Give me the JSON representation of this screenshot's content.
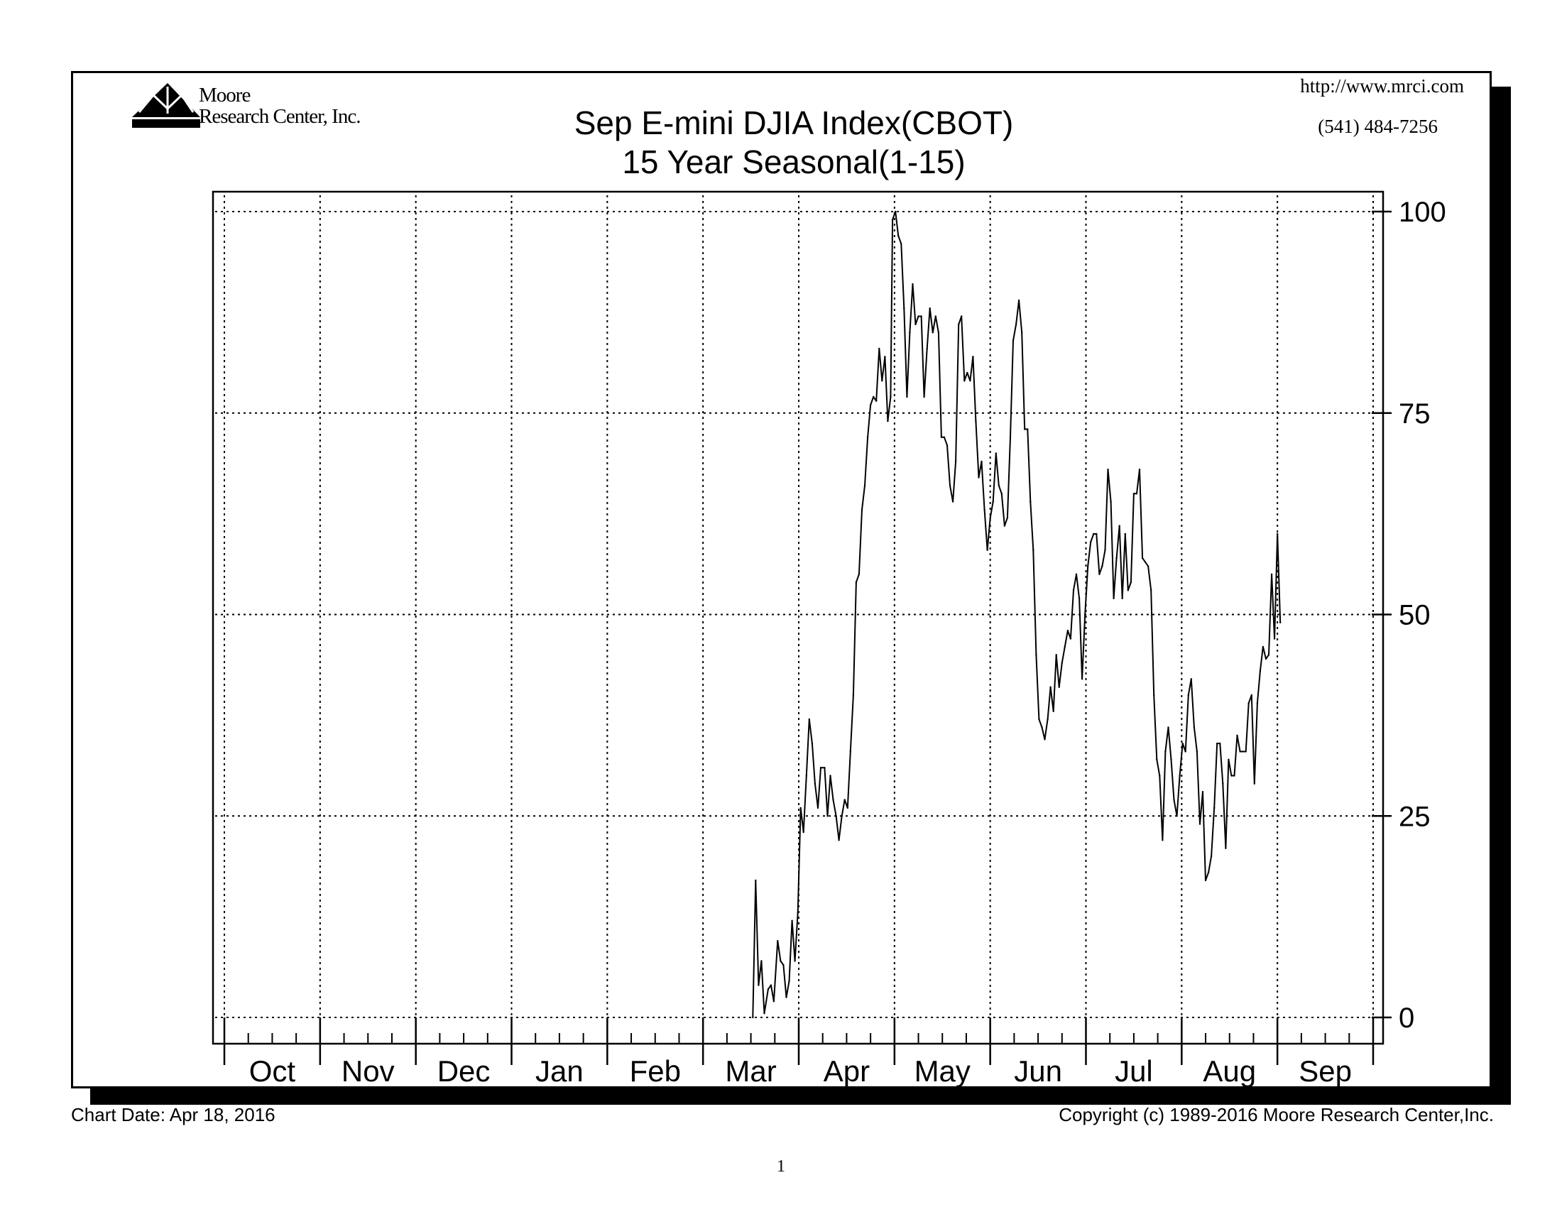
{
  "header": {
    "logo_name": "Moore",
    "logo_company": "Research Center, Inc.",
    "website": "http://www.mrci.com",
    "phone": "(541) 484-7256"
  },
  "footer": {
    "chart_date": "Chart Date: Apr 18, 2016",
    "copyright": "Copyright (c) 1989-2016 Moore Research Center,Inc.",
    "page_number": "1"
  },
  "chart_data": {
    "type": "line",
    "title": "Sep E-mini DJIA Index(CBOT)",
    "subtitle": "15 Year Seasonal(1-15)",
    "xlabel": "",
    "ylabel": "",
    "categories": [
      "Oct",
      "Nov",
      "Dec",
      "Jan",
      "Feb",
      "Mar",
      "Apr",
      "May",
      "Jun",
      "Jul",
      "Aug",
      "Sep"
    ],
    "y_ticks": [
      "0",
      "25",
      "50",
      "75",
      "100"
    ],
    "ylim": [
      0,
      100
    ],
    "xlim": [
      0,
      12
    ],
    "grid": true,
    "line_color": "#000000",
    "series": [
      {
        "points": [
          [
            5.52,
            0
          ],
          [
            5.55,
            17
          ],
          [
            5.58,
            4
          ],
          [
            5.61,
            7
          ],
          [
            5.64,
            0.5
          ],
          [
            5.68,
            3.5
          ],
          [
            5.71,
            4
          ],
          [
            5.74,
            2
          ],
          [
            5.78,
            9.5
          ],
          [
            5.81,
            7
          ],
          [
            5.84,
            6.5
          ],
          [
            5.87,
            2.5
          ],
          [
            5.9,
            4.5
          ],
          [
            5.93,
            12
          ],
          [
            5.96,
            7
          ],
          [
            5.99,
            13
          ],
          [
            6.02,
            26
          ],
          [
            6.05,
            23
          ],
          [
            6.08,
            30
          ],
          [
            6.11,
            37
          ],
          [
            6.14,
            34
          ],
          [
            6.17,
            29
          ],
          [
            6.2,
            26
          ],
          [
            6.23,
            31
          ],
          [
            6.27,
            31
          ],
          [
            6.3,
            25
          ],
          [
            6.33,
            30
          ],
          [
            6.36,
            27
          ],
          [
            6.39,
            25
          ],
          [
            6.42,
            22
          ],
          [
            6.45,
            25
          ],
          [
            6.48,
            27
          ],
          [
            6.51,
            26
          ],
          [
            6.54,
            33
          ],
          [
            6.57,
            40
          ],
          [
            6.6,
            54
          ],
          [
            6.63,
            55
          ],
          [
            6.66,
            63
          ],
          [
            6.69,
            66
          ],
          [
            6.72,
            72
          ],
          [
            6.75,
            76
          ],
          [
            6.78,
            77
          ],
          [
            6.81,
            76.5
          ],
          [
            6.84,
            83
          ],
          [
            6.87,
            79
          ],
          [
            6.9,
            82
          ],
          [
            6.93,
            74
          ],
          [
            6.96,
            77
          ],
          [
            6.98,
            99
          ],
          [
            7.01,
            100
          ],
          [
            7.04,
            97
          ],
          [
            7.07,
            96
          ],
          [
            7.1,
            88
          ],
          [
            7.13,
            77
          ],
          [
            7.16,
            85
          ],
          [
            7.19,
            91
          ],
          [
            7.22,
            86
          ],
          [
            7.25,
            87
          ],
          [
            7.28,
            87
          ],
          [
            7.31,
            77
          ],
          [
            7.34,
            83
          ],
          [
            7.37,
            88
          ],
          [
            7.4,
            85
          ],
          [
            7.43,
            87
          ],
          [
            7.46,
            85
          ],
          [
            7.49,
            72
          ],
          [
            7.52,
            72
          ],
          [
            7.55,
            71
          ],
          [
            7.58,
            66
          ],
          [
            7.61,
            64
          ],
          [
            7.64,
            69
          ],
          [
            7.67,
            86
          ],
          [
            7.7,
            87
          ],
          [
            7.73,
            79
          ],
          [
            7.76,
            80
          ],
          [
            7.79,
            79
          ],
          [
            7.82,
            82
          ],
          [
            7.85,
            74
          ],
          [
            7.88,
            67
          ],
          [
            7.91,
            69
          ],
          [
            7.94,
            63
          ],
          [
            7.97,
            58
          ],
          [
            8.0,
            62
          ],
          [
            8.03,
            64
          ],
          [
            8.06,
            70
          ],
          [
            8.09,
            66
          ],
          [
            8.12,
            65
          ],
          [
            8.15,
            61
          ],
          [
            8.18,
            62
          ],
          [
            8.21,
            72
          ],
          [
            8.24,
            84
          ],
          [
            8.27,
            86
          ],
          [
            8.3,
            89
          ],
          [
            8.33,
            85
          ],
          [
            8.36,
            73
          ],
          [
            8.39,
            73
          ],
          [
            8.42,
            64
          ],
          [
            8.45,
            58
          ],
          [
            8.48,
            45
          ],
          [
            8.51,
            37
          ],
          [
            8.54,
            36
          ],
          [
            8.57,
            34.5
          ],
          [
            8.6,
            37
          ],
          [
            8.63,
            41
          ],
          [
            8.66,
            38
          ],
          [
            8.69,
            45
          ],
          [
            8.72,
            41
          ],
          [
            8.75,
            44
          ],
          [
            8.78,
            46
          ],
          [
            8.81,
            48
          ],
          [
            8.84,
            47
          ],
          [
            8.87,
            53
          ],
          [
            8.9,
            55
          ],
          [
            8.93,
            52
          ],
          [
            8.96,
            42
          ],
          [
            8.99,
            50
          ],
          [
            9.02,
            56
          ],
          [
            9.05,
            59
          ],
          [
            9.08,
            60
          ],
          [
            9.11,
            60
          ],
          [
            9.14,
            55
          ],
          [
            9.17,
            56
          ],
          [
            9.2,
            58
          ],
          [
            9.23,
            68
          ],
          [
            9.26,
            64
          ],
          [
            9.29,
            52
          ],
          [
            9.32,
            57
          ],
          [
            9.35,
            61
          ],
          [
            9.38,
            52
          ],
          [
            9.41,
            60
          ],
          [
            9.44,
            53
          ],
          [
            9.47,
            54
          ],
          [
            9.5,
            65
          ],
          [
            9.53,
            65
          ],
          [
            9.56,
            68
          ],
          [
            9.59,
            57
          ],
          [
            9.62,
            56.5
          ],
          [
            9.65,
            56
          ],
          [
            9.68,
            53
          ],
          [
            9.71,
            40
          ],
          [
            9.74,
            32
          ],
          [
            9.77,
            30
          ],
          [
            9.8,
            22
          ],
          [
            9.83,
            33
          ],
          [
            9.86,
            36
          ],
          [
            9.89,
            32
          ],
          [
            9.92,
            27
          ],
          [
            9.95,
            25
          ],
          [
            9.98,
            30
          ],
          [
            10.01,
            34
          ],
          [
            10.04,
            33
          ],
          [
            10.07,
            40
          ],
          [
            10.1,
            42
          ],
          [
            10.13,
            36
          ],
          [
            10.16,
            33
          ],
          [
            10.19,
            24
          ],
          [
            10.22,
            28
          ],
          [
            10.25,
            17
          ],
          [
            10.28,
            18
          ],
          [
            10.31,
            20
          ],
          [
            10.34,
            26
          ],
          [
            10.37,
            34
          ],
          [
            10.4,
            34
          ],
          [
            10.43,
            29
          ],
          [
            10.46,
            21
          ],
          [
            10.49,
            32
          ],
          [
            10.52,
            30
          ],
          [
            10.55,
            30
          ],
          [
            10.58,
            35
          ],
          [
            10.61,
            33
          ],
          [
            10.64,
            33
          ],
          [
            10.67,
            33
          ],
          [
            10.7,
            39
          ],
          [
            10.73,
            40
          ],
          [
            10.76,
            29
          ],
          [
            10.79,
            39
          ],
          [
            10.82,
            43
          ],
          [
            10.85,
            46
          ],
          [
            10.88,
            44.5
          ],
          [
            10.91,
            45
          ],
          [
            10.94,
            55
          ],
          [
            10.97,
            47
          ],
          [
            11.0,
            60
          ],
          [
            11.03,
            49
          ]
        ]
      }
    ]
  }
}
